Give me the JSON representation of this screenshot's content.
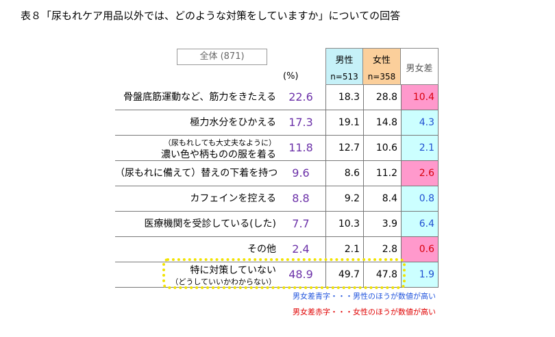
{
  "title": "表８「尿もれケア用品以外では、どのような対策をしていますか」についての回答",
  "overall_label": "全体 (871)",
  "pct_unit": "(%)",
  "headers": {
    "male": "男性",
    "male_n": "n=513",
    "female": "女性",
    "female_n": "n=358",
    "diff": "男女差"
  },
  "rows": [
    {
      "label": "骨盤底筋運動など、筋力をきたえる",
      "total": "22.6",
      "male": "18.3",
      "female": "28.8",
      "diff": "10.4",
      "diff_color": "red"
    },
    {
      "label": "極力水分をひかえる",
      "total": "17.3",
      "male": "19.1",
      "female": "14.8",
      "diff": "4.3",
      "diff_color": "blue"
    },
    {
      "label_small": "（尿もれしても大丈夫なように）",
      "label": "濃い色や柄ものの服を着る",
      "total": "11.8",
      "male": "12.7",
      "female": "10.6",
      "diff": "2.1",
      "diff_color": "blue"
    },
    {
      "label": "（尿もれに備えて）替えの下着を持つ",
      "total": "9.6",
      "male": "8.6",
      "female": "11.2",
      "diff": "2.6",
      "diff_color": "red"
    },
    {
      "label": "カフェインを控える",
      "total": "8.8",
      "male": "9.2",
      "female": "8.4",
      "diff": "0.8",
      "diff_color": "blue"
    },
    {
      "label": "医療機関を受診している(した)",
      "total": "7.7",
      "male": "10.3",
      "female": "3.9",
      "diff": "6.4",
      "diff_color": "blue"
    },
    {
      "label": "その他",
      "total": "2.4",
      "male": "2.1",
      "female": "2.8",
      "diff": "0.6",
      "diff_color": "red"
    },
    {
      "label": "特に対策していない",
      "label_small": "（どうしていいかわからない）",
      "total": "48.9",
      "male": "49.7",
      "female": "47.8",
      "diff": "1.9",
      "diff_color": "blue"
    }
  ],
  "notes": {
    "blue": "男女差青字・・・男性のほうが数値が高い",
    "red": "男女差赤字・・・女性のほうが数値が高い"
  },
  "colors": {
    "male_header": "#c6f1f8",
    "female_header": "#fbcf9b",
    "diff_red_bg": "#ff99cc",
    "diff_blue_bg": "#ccffff",
    "total_text": "#6b30a8",
    "highlight_border": "#f2e300"
  }
}
